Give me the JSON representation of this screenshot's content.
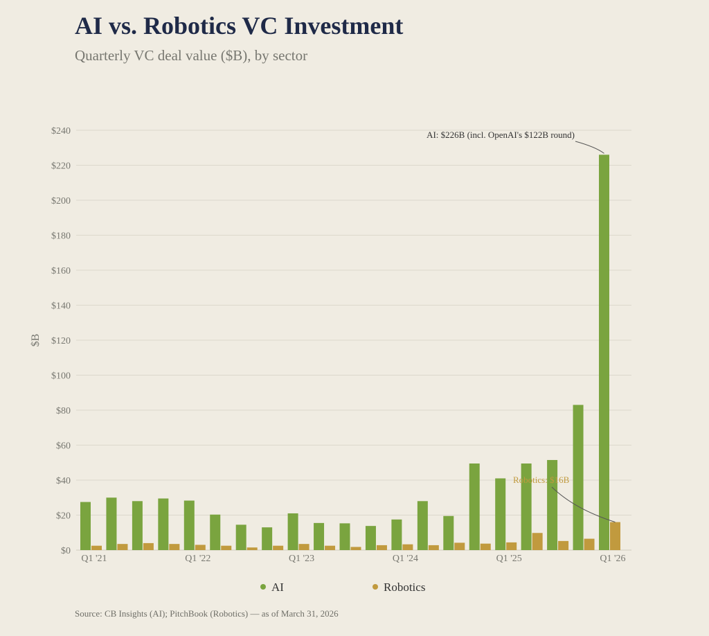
{
  "title": "AI vs. Robotics VC Investment",
  "subtitle": "Quarterly VC deal value ($B), by sector",
  "source": "Source: CB Insights (AI); PitchBook (Robotics) — as of March 31, 2026",
  "colors": {
    "ai": "#7aa43f",
    "robotics": "#c19a3e",
    "grid": "#dcd8cc",
    "text": "#777770"
  },
  "chart_data": {
    "type": "bar",
    "ylabel": "$B",
    "ylim": [
      0,
      240
    ],
    "yticks": [
      0,
      20,
      40,
      60,
      80,
      100,
      120,
      140,
      160,
      180,
      200,
      220,
      240
    ],
    "ytick_labels": [
      "$0",
      "$20",
      "$40",
      "$60",
      "$80",
      "$100",
      "$120",
      "$140",
      "$160",
      "$180",
      "$200",
      "$220",
      "$240"
    ],
    "categories": [
      "Q1 '21",
      "Q2 '21",
      "Q3 '21",
      "Q4 '21",
      "Q1 '22",
      "Q2 '22",
      "Q3 '22",
      "Q4 '22",
      "Q1 '23",
      "Q2 '23",
      "Q3 '23",
      "Q4 '23",
      "Q1 '24",
      "Q2 '24",
      "Q3 '24",
      "Q4 '24",
      "Q1 '25",
      "Q2 '25",
      "Q3 '25",
      "Q4 '25",
      "Q1 '26"
    ],
    "xtick_labels": [
      "Q1 '21",
      "",
      "",
      "",
      "Q1 '22",
      "",
      "",
      "",
      "Q1 '23",
      "",
      "",
      "",
      "Q1 '24",
      "",
      "",
      "",
      "Q1 '25",
      "",
      "",
      "",
      "Q1 '26"
    ],
    "series": [
      {
        "name": "AI",
        "values": [
          27.5,
          30,
          28,
          29.5,
          28.3,
          20.3,
          14.5,
          13,
          21,
          15.5,
          15.3,
          13.8,
          17.5,
          28,
          19.5,
          49.5,
          41,
          49.5,
          51.5,
          83,
          226
        ]
      },
      {
        "name": "Robotics",
        "values": [
          2.5,
          3.5,
          4,
          3.5,
          3,
          2.5,
          1.5,
          2.5,
          3.5,
          2.5,
          1.8,
          2.8,
          3.3,
          2.8,
          4.2,
          3.7,
          4.4,
          9.8,
          5.2,
          6.5,
          16
        ]
      }
    ],
    "legend": {
      "position": "bottom-center",
      "entries": [
        "AI",
        "Robotics"
      ]
    },
    "grid": true,
    "annotations": [
      {
        "text": "AI: $226B  (incl. OpenAI's $122B round)",
        "category": "Q1 '26",
        "series": "AI",
        "value": 226
      },
      {
        "text": "Robotics: $16B",
        "category": "Q1 '26",
        "series": "Robotics",
        "value": 16
      }
    ]
  }
}
